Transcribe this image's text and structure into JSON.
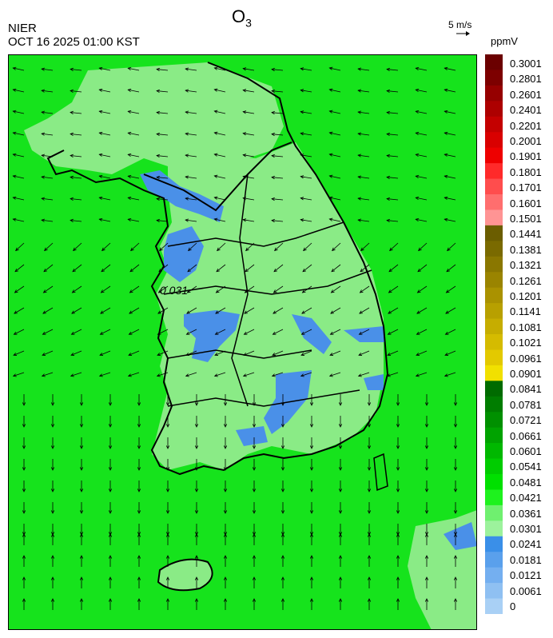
{
  "header": {
    "org": "NIER",
    "timestamp": "OCT 16 2025 01:00 KST",
    "title_main": "O",
    "title_sub": "3",
    "scale_label": "5 m/s",
    "unit": "ppmV"
  },
  "map_annotation": "0.031",
  "colors": {
    "sea_green": "#16e31c",
    "land_light_green": "#8aeb86",
    "high_blue": "#4a90e8",
    "border": "#000000"
  },
  "legend": {
    "ticks": [
      "0.3001",
      "0.2801",
      "0.2601",
      "0.2401",
      "0.2201",
      "0.2001",
      "0.1901",
      "0.1801",
      "0.1701",
      "0.1601",
      "0.1501",
      "0.1441",
      "0.1381",
      "0.1321",
      "0.1261",
      "0.1201",
      "0.1141",
      "0.1081",
      "0.1021",
      "0.0961",
      "0.0901",
      "0.0841",
      "0.0781",
      "0.0721",
      "0.0661",
      "0.0601",
      "0.0541",
      "0.0481",
      "0.0421",
      "0.0361",
      "0.0301",
      "0.0241",
      "0.0181",
      "0.0121",
      "0.0061",
      "0"
    ],
    "colors": [
      "#6b0000",
      "#7d0000",
      "#960000",
      "#ad0000",
      "#c40000",
      "#d90000",
      "#ee0000",
      "#ff2a2a",
      "#ff4d4d",
      "#ff6e6e",
      "#ff9494",
      "#6b5d00",
      "#7a6a00",
      "#8a7700",
      "#9a8400",
      "#aa9200",
      "#b8a000",
      "#c6ad00",
      "#d5bb00",
      "#e3c900",
      "#f1e000",
      "#006b00",
      "#007d00",
      "#009000",
      "#00a300",
      "#00b800",
      "#00cc00",
      "#00e000",
      "#1ef21e",
      "#6ff06f",
      "#9cf29c",
      "#3a8fe8",
      "#5aa0ec",
      "#74aff0",
      "#8fc0f2",
      "#a9d0f5"
    ]
  }
}
